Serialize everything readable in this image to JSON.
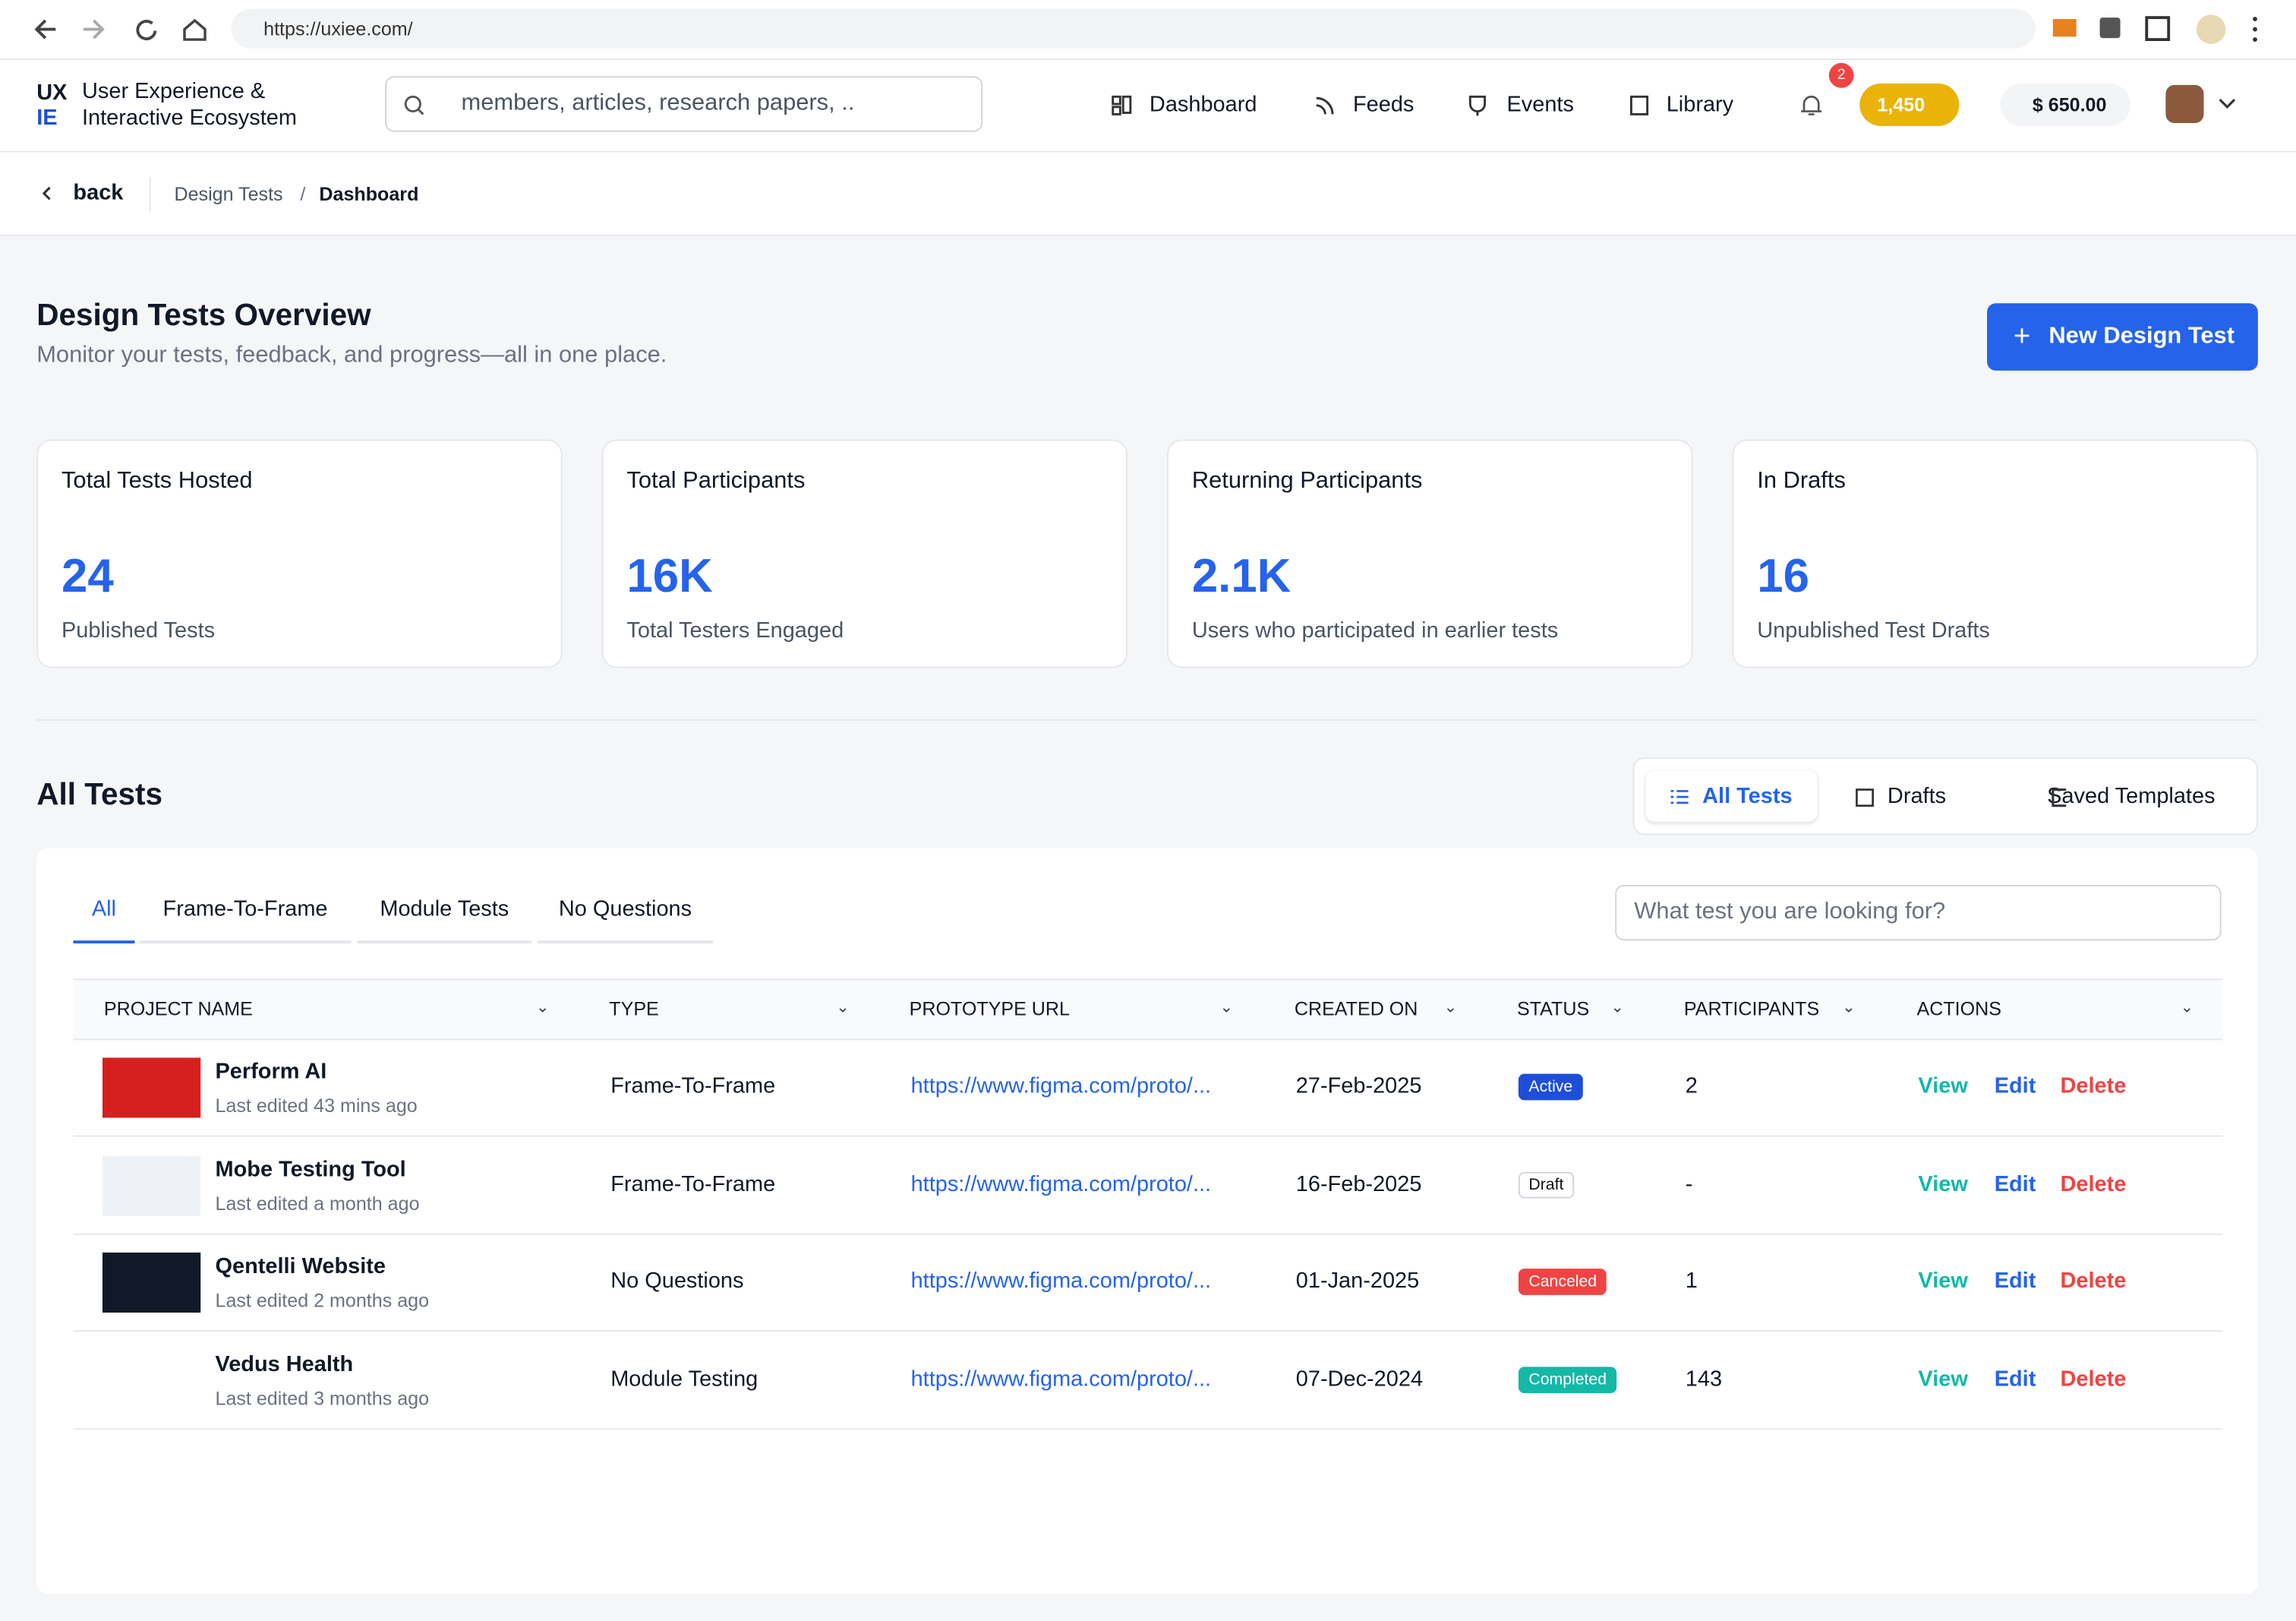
{
  "browser": {
    "url": "https://uxiee.com/"
  },
  "header": {
    "logo_top": "UX",
    "logo_bottom": "IE",
    "brand_line1": "User Experience &",
    "brand_line2": "Interactive Ecosystem",
    "search_placeholder": "members, articles, research papers, ..",
    "nav": [
      "Dashboard",
      "Feeds",
      "Events",
      "Library"
    ],
    "notification_count": "2",
    "coins": "1,450",
    "balance": "$ 650.00"
  },
  "breadcrumb": {
    "back": "back",
    "items": [
      "Design Tests",
      "Dashboard"
    ]
  },
  "overview": {
    "title": "Design Tests Overview",
    "subtitle": "Monitor your tests, feedback, and progress—all in one place.",
    "new_button": "New Design Test"
  },
  "stats": [
    {
      "title": "Total Tests Hosted",
      "value": "24",
      "caption": "Published Tests"
    },
    {
      "title": "Total Participants",
      "value": "16K",
      "caption": "Total Testers Engaged"
    },
    {
      "title": "Returning Participants",
      "value": "2.1K",
      "caption": "Users who participated in earlier tests"
    },
    {
      "title": "In Drafts",
      "value": "16",
      "caption": "Unpublished Test Drafts"
    }
  ],
  "all_tests": {
    "title": "All Tests",
    "views": [
      "All Tests",
      "Drafts",
      "Saved Templates"
    ],
    "filters": [
      "All",
      "Frame-To-Frame",
      "Module Tests",
      "No Questions"
    ],
    "search_placeholder": "What test you are looking for?",
    "columns": [
      "PROJECT NAME",
      "TYPE",
      "PROTOTYPE URL",
      "CREATED ON",
      "STATUS",
      "PARTICIPANTS",
      "ACTIONS"
    ],
    "actions": [
      "View",
      "Edit",
      "Delete"
    ],
    "rows": [
      {
        "name": "Perform AI",
        "edited": "Last edited 43 mins ago",
        "type": "Frame-To-Frame",
        "url": "https://www.figma.com/proto/...",
        "created": "27-Feb-2025",
        "status": "Active",
        "status_color": "#1d4ed8",
        "participants": "2",
        "thumb_color": "#d61f1f"
      },
      {
        "name": "Mobe Testing Tool",
        "edited": "Last edited a month ago",
        "type": "Frame-To-Frame",
        "url": "https://www.figma.com/proto/...",
        "created": "16-Feb-2025",
        "status": "Draft",
        "status_color": "#ffffff",
        "participants": "-",
        "thumb_color": "#eef1f6"
      },
      {
        "name": "Qentelli Website",
        "edited": "Last edited 2 months ago",
        "type": "No Questions",
        "url": "https://www.figma.com/proto/...",
        "created": "01-Jan-2025",
        "status": "Canceled",
        "status_color": "#ef4444",
        "participants": "1",
        "thumb_color": "#111827"
      },
      {
        "name": "Vedus Health",
        "edited": "Last edited 3 months ago",
        "type": "Module Testing",
        "url": "https://www.figma.com/proto/...",
        "created": "07-Dec-2024",
        "status": "Completed",
        "status_color": "#14b8a6",
        "participants": "143",
        "thumb_color": "#ffffff"
      }
    ]
  }
}
